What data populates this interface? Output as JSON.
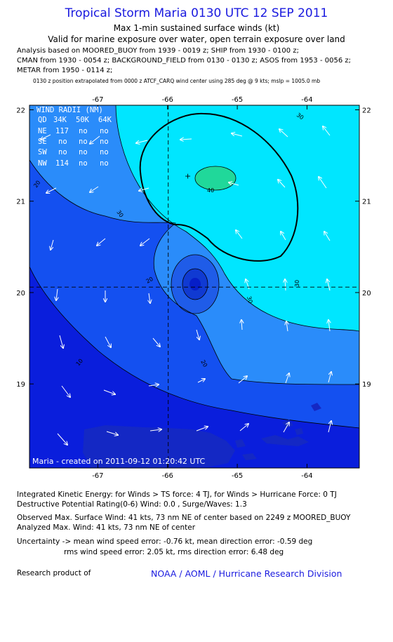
{
  "header": {
    "title": "Tropical Storm Maria 0130 UTC 12 SEP 2011",
    "subtitle1": "Max 1-min sustained surface winds (kt)",
    "subtitle2": "Valid for marine exposure over water, open terrain exposure over land",
    "analysis_lines": [
      "Analysis based on MOORED_BUOY from 1939 - 0019 z; SHIP from 1930 - 0100 z;",
      "CMAN from 1930 - 0054 z; BACKGROUND_FIELD from 0130 - 0130 z; ASOS from 1953 - 0056 z;",
      "METAR from 1950 - 0114 z;"
    ],
    "position_note": "0130 z position extrapolated from 0000 z ATCF_CARQ wind center using 285 deg @ 9 kts; mslp = 1005.0 mb"
  },
  "map": {
    "lon_labels": [
      "-67",
      "-66",
      "-65",
      "-64"
    ],
    "lat_labels": [
      "22",
      "21",
      "20",
      "19"
    ],
    "center": {
      "lon": -65.99,
      "lat": 20.06
    },
    "max_wind_marker": {
      "lon": -65.71,
      "lat": 21.27
    },
    "contour_labels": [
      "10",
      "20",
      "20",
      "20",
      "30",
      "30",
      "30",
      "30",
      "40"
    ],
    "credit": "Maria - created on 2011-09-12 01:20:42 UTC",
    "wind_radii": {
      "title": "WIND RADII (NM)",
      "header": [
        "QD",
        "34K",
        "50K",
        "64K"
      ],
      "rows": [
        [
          "NE",
          "117",
          "no",
          "no"
        ],
        [
          "SE",
          "no",
          "no",
          "no"
        ],
        [
          "SW",
          "no",
          "no",
          "no"
        ],
        [
          "NW",
          "114",
          "no",
          "no"
        ]
      ]
    },
    "colors": {
      "band_0_10": "#0a1edc",
      "band_10_20": "#1450f0",
      "band_20_30": "#2a8cfa",
      "band_30_40": "#00e6ff",
      "band_40_50": "#20d89a",
      "eye_ring1": "#1f5ce8",
      "eye_ring2": "#103ad2",
      "eye_core": "#061ec8",
      "land": "#1428c4"
    }
  },
  "footer": {
    "ike": "Integrated Kinetic Energy:  for Winds > TS force: 4 TJ,  for Winds > Hurricane Force: 0 TJ",
    "dpr": "Destructive Potential Rating(0-6)   Wind: 0.0 , Surge/Waves: 1.3",
    "observed": "Observed Max. Surface Wind: 41 kts, 73 nm NE of center based on 2249 z MOORED_BUOY",
    "analyzed": "Analyzed Max. Wind: 41 kts, 73 nm NE of center",
    "uncertainty1": "Uncertainty -> mean wind speed error:  -0.76 kt,   mean direction error:  -0.59 deg",
    "uncertainty2": "rms wind speed error: 2.05 kt,   rms direction error: 6.48 deg",
    "research": "Research product of",
    "org": "NOAA / AOML / Hurricane Research Division"
  }
}
